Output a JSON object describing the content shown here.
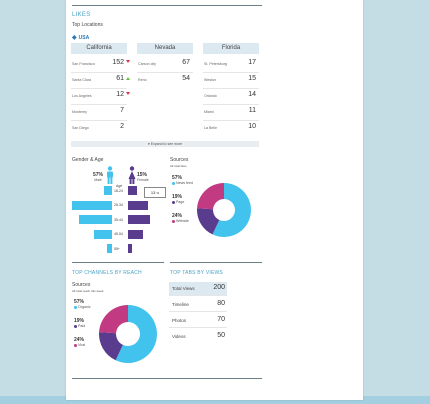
{
  "likes": {
    "title": "LIKES",
    "subtitle": "Top Locations",
    "country": "USA",
    "expand_label": "Expand to see more",
    "states": [
      {
        "name": "California",
        "cities": [
          {
            "name": "San Francisco",
            "value": "152",
            "trend": "down"
          },
          {
            "name": "Santa Clara",
            "value": "61",
            "trend": "up"
          },
          {
            "name": "Los Angeles",
            "value": "12",
            "trend": "down"
          },
          {
            "name": "Monterey",
            "value": "7",
            "trend": ""
          },
          {
            "name": "San Diego",
            "value": "2",
            "trend": ""
          }
        ]
      },
      {
        "name": "Nevada",
        "cities": [
          {
            "name": "Carson city",
            "value": "67",
            "trend": ""
          },
          {
            "name": "Reno",
            "value": "54",
            "trend": ""
          }
        ]
      },
      {
        "name": "Florida",
        "cities": [
          {
            "name": "St. Petersburg",
            "value": "17",
            "trend": ""
          },
          {
            "name": "Weston",
            "value": "15",
            "trend": ""
          },
          {
            "name": "Orlando",
            "value": "14",
            "trend": ""
          },
          {
            "name": "Miami",
            "value": "11",
            "trend": ""
          },
          {
            "name": "La Belle",
            "value": "10",
            "trend": ""
          }
        ]
      }
    ]
  },
  "gender_age": {
    "title": "Gender & Age",
    "male_pct": "57%",
    "male_label": "Male",
    "female_pct": "15%",
    "female_label": "Female",
    "age_header": "Age",
    "tooltip": "13",
    "tooltip_unit": "%",
    "groups": [
      {
        "age": "18-24",
        "male": 0.2,
        "female": 0.27
      },
      {
        "age": "25-34",
        "male": 1.0,
        "female": 0.62
      },
      {
        "age": "35-44",
        "male": 0.82,
        "female": 0.68
      },
      {
        "age": "45-54",
        "male": 0.45,
        "female": 0.47
      },
      {
        "age": "55+",
        "male": 0.12,
        "female": 0.13
      }
    ],
    "colors": {
      "male": "#41c3ee",
      "female": "#5a3c8f"
    }
  },
  "sources_top": {
    "title": "Sources",
    "subtitle": "All total likes",
    "items": [
      {
        "pct": "57%",
        "label": "News feed",
        "color": "#41c3ee",
        "value": 57
      },
      {
        "pct": "19%",
        "label": "Page",
        "color": "#5a3c8f",
        "value": 19
      },
      {
        "pct": "24%",
        "label": "Website",
        "color": "#c13a82",
        "value": 24
      }
    ]
  },
  "channels": {
    "title": "TOP CHANNELS BY REACH",
    "sources_title": "Sources",
    "sources_subtitle": "All total reach this week",
    "items": [
      {
        "pct": "57%",
        "label": "Organic",
        "color": "#41c3ee",
        "value": 57
      },
      {
        "pct": "19%",
        "label": "Paid",
        "color": "#5a3c8f",
        "value": 19
      },
      {
        "pct": "24%",
        "label": "Viral",
        "color": "#c13a82",
        "value": 24
      }
    ]
  },
  "tabs": {
    "title": "TOP TABS BY VIEWS",
    "rows": [
      {
        "label": "Total Views",
        "value": "200"
      },
      {
        "label": "Timeline",
        "value": "80"
      },
      {
        "label": "Photos",
        "value": "70"
      },
      {
        "label": "Videos",
        "value": "50"
      }
    ]
  }
}
